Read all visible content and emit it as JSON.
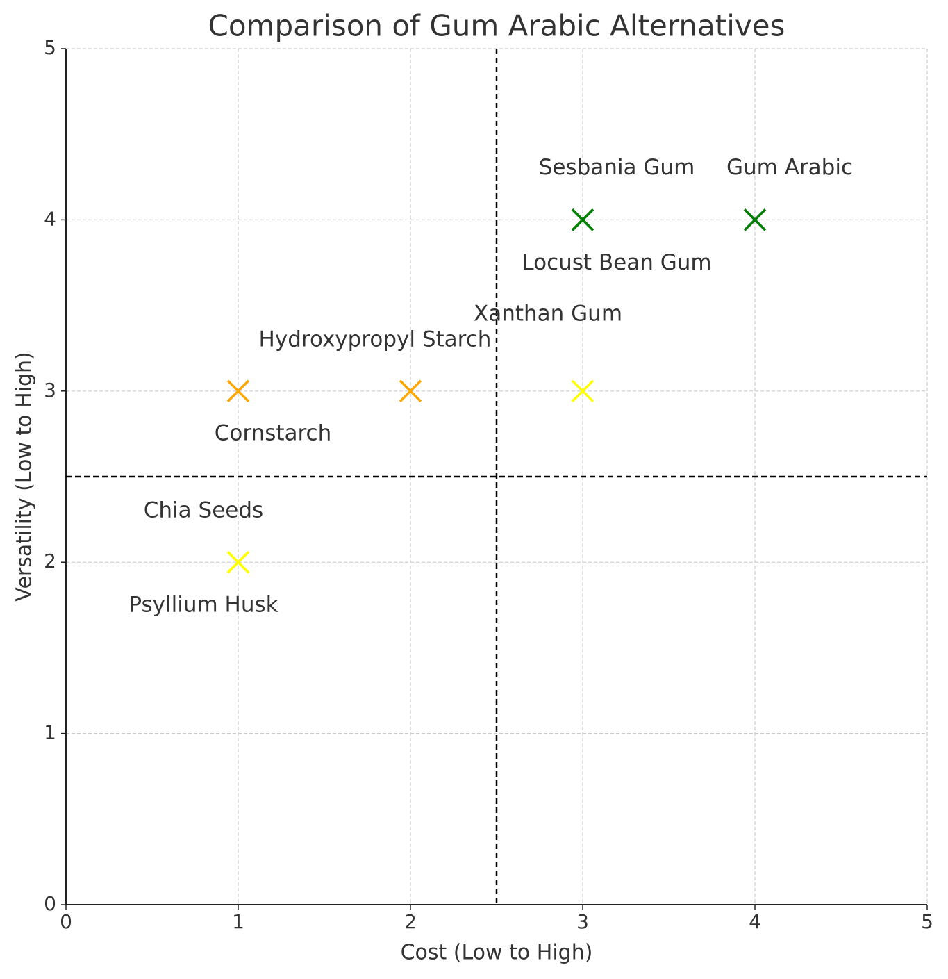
{
  "chart_data": {
    "type": "scatter",
    "title": "Comparison of Gum Arabic Alternatives",
    "x_label": "Cost (Low to High)",
    "y_label": "Versatility (Low to High)",
    "xlim": [
      0,
      5
    ],
    "ylim": [
      0,
      5
    ],
    "xticks": [
      0,
      1,
      2,
      3,
      4,
      5
    ],
    "yticks": [
      0,
      1,
      2,
      3,
      4,
      5
    ],
    "grid": true,
    "reference_lines": {
      "x": 2.5,
      "y": 2.5
    },
    "points": [
      {
        "label": "Gum Arabic",
        "x": 4,
        "y": 4,
        "color": "#008000"
      },
      {
        "label": "Sesbania Gum",
        "x": 3,
        "y": 4,
        "color": "#008000"
      },
      {
        "label": "Locust Bean Gum",
        "x": 3,
        "y": 4,
        "color": "#008000"
      },
      {
        "label": "Xanthan Gum",
        "x": 3,
        "y": 3,
        "color": "#FFFF00"
      },
      {
        "label": "Hydroxypropyl Starch",
        "x": 2,
        "y": 3,
        "color": "#FFA500"
      },
      {
        "label": "Cornstarch",
        "x": 1,
        "y": 3,
        "color": "#FFA500"
      },
      {
        "label": "Chia Seeds",
        "x": 1,
        "y": 2,
        "color": "#FFFF00"
      },
      {
        "label": "Psyllium Husk",
        "x": 1,
        "y": 2,
        "color": "#FFFF00"
      }
    ]
  }
}
